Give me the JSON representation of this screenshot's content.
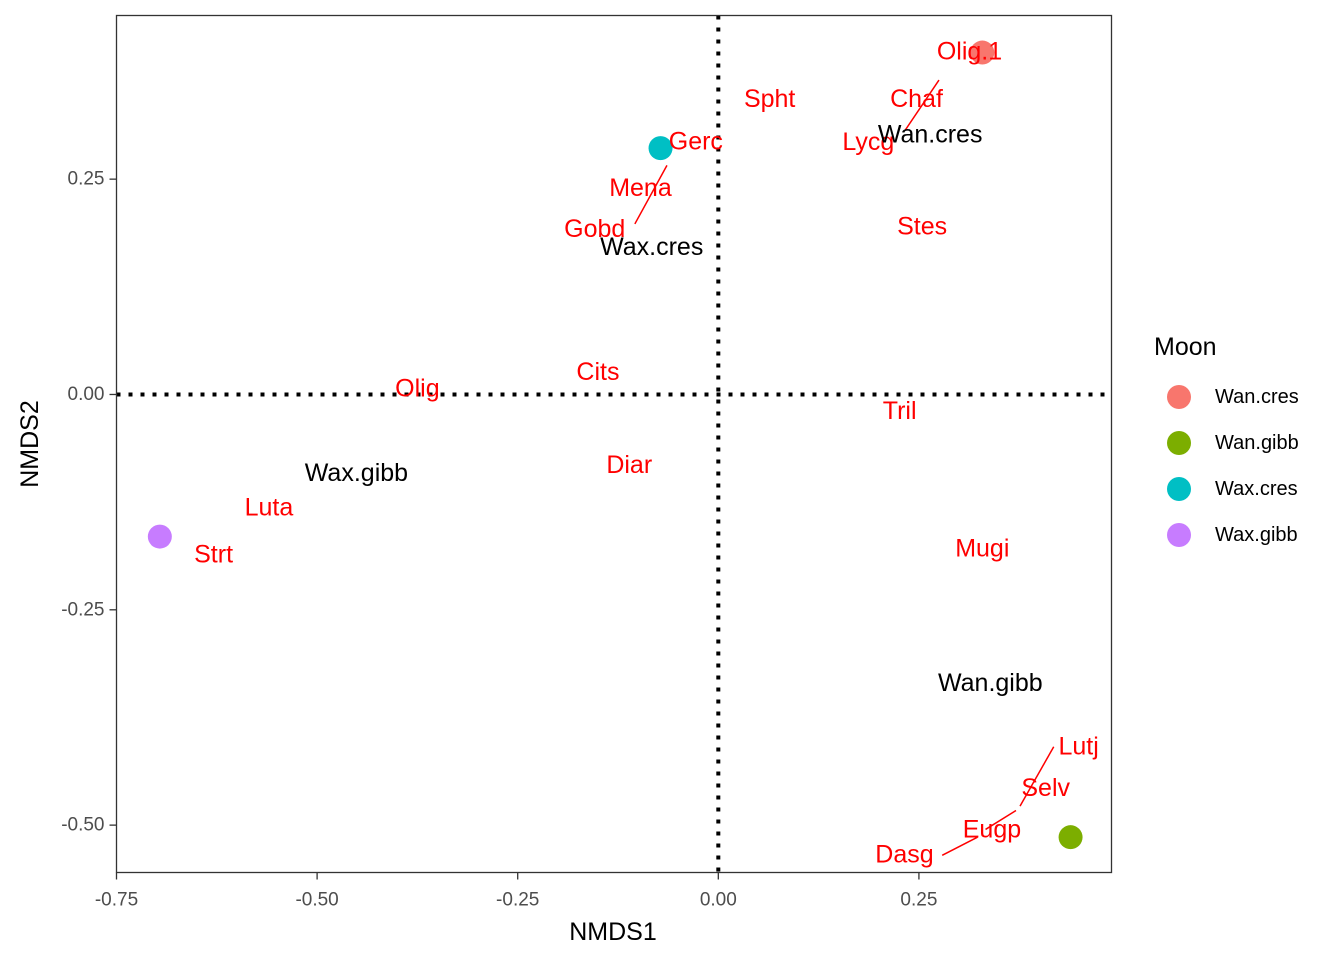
{
  "chart_data": {
    "type": "scatter",
    "xlabel": "NMDS1",
    "ylabel": "NMDS2",
    "xlim": [
      -0.75,
      0.49
    ],
    "ylim": [
      -0.555,
      0.44
    ],
    "x_ticks": [
      -0.75,
      -0.5,
      -0.25,
      0.0,
      0.25
    ],
    "x_tick_labels": [
      "-0.75",
      "-0.50",
      "-0.25",
      "0.00",
      "0.25"
    ],
    "y_ticks": [
      0.25,
      0.0,
      -0.25,
      -0.5
    ],
    "y_tick_labels": [
      "0.25",
      "0.00",
      "-0.25",
      "-0.50"
    ],
    "reference_lines": {
      "x": 0,
      "y": 0,
      "style": "dotted"
    },
    "legend": {
      "title": "Moon",
      "position": "right",
      "entries": [
        {
          "label": "Wan.cres",
          "color": "#F8766D"
        },
        {
          "label": "Wan.gibb",
          "color": "#7CAE00"
        },
        {
          "label": "Wax.cres",
          "color": "#00BFC4"
        },
        {
          "label": "Wax.gibb",
          "color": "#C77CFF"
        }
      ]
    },
    "points": [
      {
        "group": "Wan.cres",
        "x": 0.329,
        "y": 0.397,
        "color": "#F8766D"
      },
      {
        "group": "Wan.gibb",
        "x": 0.439,
        "y": -0.514,
        "color": "#7CAE00"
      },
      {
        "group": "Wax.cres",
        "x": -0.072,
        "y": 0.286,
        "color": "#00BFC4"
      },
      {
        "group": "Wax.gibb",
        "x": -0.696,
        "y": -0.165,
        "color": "#C77CFF"
      }
    ],
    "group_labels": [
      {
        "text": "Wan.cres",
        "x": 0.264,
        "y": 0.302
      },
      {
        "text": "Wax.cres",
        "x": -0.083,
        "y": 0.171
      },
      {
        "text": "Wax.gibb",
        "x": -0.451,
        "y": -0.091
      },
      {
        "text": "Wan.gibb",
        "x": 0.339,
        "y": -0.335
      }
    ],
    "species_labels": [
      {
        "text": "Olig.1",
        "x": 0.313,
        "y": 0.398
      },
      {
        "text": "Spht",
        "x": 0.064,
        "y": 0.343
      },
      {
        "text": "Chaf",
        "x": 0.247,
        "y": 0.343
      },
      {
        "text": "Lycg",
        "x": 0.187,
        "y": 0.293
      },
      {
        "text": "Gerc",
        "x": -0.028,
        "y": 0.294
      },
      {
        "text": "Mena",
        "x": -0.097,
        "y": 0.24
      },
      {
        "text": "Gobd",
        "x": -0.154,
        "y": 0.192
      },
      {
        "text": "Stes",
        "x": 0.254,
        "y": 0.195
      },
      {
        "text": "Cits",
        "x": -0.15,
        "y": 0.026
      },
      {
        "text": "Olig",
        "x": -0.375,
        "y": 0.007
      },
      {
        "text": "Tril",
        "x": 0.226,
        "y": -0.019
      },
      {
        "text": "Diar",
        "x": -0.111,
        "y": -0.082
      },
      {
        "text": "Luta",
        "x": -0.56,
        "y": -0.131
      },
      {
        "text": "Strt",
        "x": -0.629,
        "y": -0.186
      },
      {
        "text": "Mugi",
        "x": 0.329,
        "y": -0.179
      },
      {
        "text": "Lutj",
        "x": 0.449,
        "y": -0.409
      },
      {
        "text": "Selv",
        "x": 0.408,
        "y": -0.457
      },
      {
        "text": "Eugp",
        "x": 0.341,
        "y": -0.505
      },
      {
        "text": "Dasg",
        "x": 0.232,
        "y": -0.534
      }
    ],
    "leader_lines": [
      {
        "from": [
          0.275,
          0.365
        ],
        "to": [
          0.233,
          0.307
        ]
      },
      {
        "from": [
          -0.064,
          0.266
        ],
        "to": [
          -0.104,
          0.198
        ]
      },
      {
        "from": [
          0.418,
          -0.409
        ],
        "to": [
          0.376,
          -0.478
        ]
      },
      {
        "from": [
          0.371,
          -0.483
        ],
        "to": [
          0.333,
          -0.505
        ]
      },
      {
        "from": [
          0.323,
          -0.514
        ],
        "to": [
          0.279,
          -0.535
        ]
      }
    ]
  }
}
